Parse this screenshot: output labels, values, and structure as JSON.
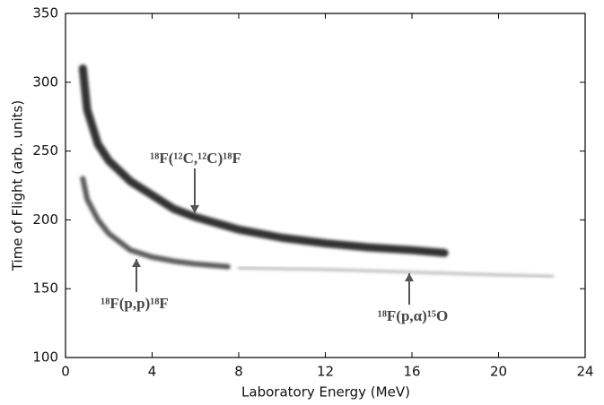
{
  "chart_data": {
    "type": "line",
    "xlabel": "Laboratory Energy (MeV)",
    "ylabel": "Time of Flight (arb. units)",
    "xlim": [
      0,
      24
    ],
    "xticks": [
      0,
      4,
      8,
      12,
      16,
      20,
      24
    ],
    "ylim": [
      100,
      350
    ],
    "yticks": [
      100,
      150,
      200,
      250,
      300,
      350
    ],
    "series": [
      {
        "color": "#1e1e1e",
        "x": [
          0.8,
          1,
          1.5,
          2,
          3,
          4,
          5,
          6,
          8,
          10,
          12,
          14,
          16,
          17.5
        ],
        "values": [
          310,
          280,
          255,
          243,
          228,
          218,
          208,
          202,
          193,
          187,
          183,
          180,
          178,
          176
        ]
      },
      {
        "color": "#4a4a4a",
        "x": [
          0.8,
          1,
          1.5,
          2,
          3,
          4,
          5,
          6,
          7.5
        ],
        "values": [
          230,
          215,
          200,
          190,
          178,
          173,
          170,
          168,
          166
        ]
      },
      {
        "color": "#b0b0b0",
        "x": [
          8,
          12,
          16,
          20,
          22.5
        ],
        "values": [
          165,
          164,
          162,
          160,
          159
        ]
      }
    ],
    "annotations": [
      {
        "text": "¹⁸F(¹²C,¹²C)¹⁸F"
      },
      {
        "text": "¹⁸F(p,p)¹⁸F"
      },
      {
        "text": "¹⁸F(p,α)¹⁵O"
      }
    ]
  }
}
